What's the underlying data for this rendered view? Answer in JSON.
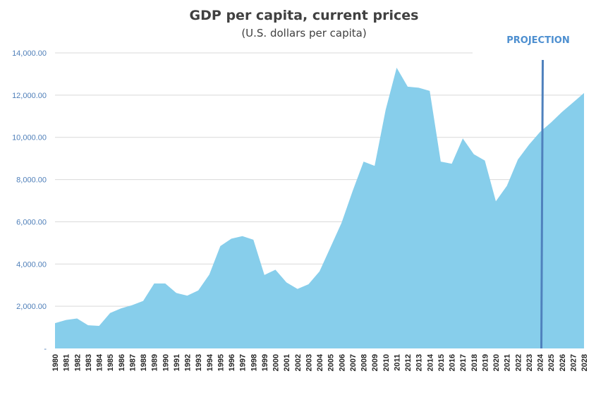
{
  "chart_data": {
    "type": "area",
    "title": "GDP per capita, current prices",
    "subtitle": "(U.S. dollars per capita)",
    "annotation": "PROJECTION",
    "projection_start": 2024,
    "ylim": [
      0,
      14000
    ],
    "yticks": [
      0,
      2000,
      4000,
      6000,
      8000,
      10000,
      12000,
      14000
    ],
    "ytick_labels": [
      "-",
      "2,000.00",
      "4,000.00",
      "6,000.00",
      "8,000.00",
      "10,000.00",
      "12,000.00",
      "14,000.00"
    ],
    "grid": true,
    "colors": {
      "area": "#87ceeb",
      "projection_line": "#4f81bd",
      "tick_text": "#4f7fb9"
    },
    "x": [
      1980,
      1981,
      1982,
      1983,
      1984,
      1985,
      1986,
      1987,
      1988,
      1989,
      1990,
      1991,
      1992,
      1993,
      1994,
      1995,
      1996,
      1997,
      1998,
      1999,
      2000,
      2001,
      2002,
      2003,
      2004,
      2005,
      2006,
      2007,
      2008,
      2009,
      2010,
      2011,
      2012,
      2013,
      2014,
      2015,
      2016,
      2017,
      2018,
      2019,
      2020,
      2021,
      2022,
      2023,
      2024,
      2025,
      2026,
      2027,
      2028
    ],
    "x_labels": [
      "1980",
      "1981",
      "1982",
      "1983",
      "1984",
      "1985",
      "1986",
      "1987",
      "1988",
      "1989",
      "1990",
      "1991",
      "1992",
      "1993",
      "1994",
      "1995",
      "1996",
      "1997",
      "1998",
      "1999",
      "2000",
      "2001",
      "2002",
      "2003",
      "2004",
      "2005",
      "2006",
      "2007",
      "2008",
      "2009",
      "2010",
      "2011",
      "2012",
      "2013",
      "2014",
      "2015",
      "2016",
      "2017",
      "2018",
      "2019",
      "2020",
      "2021",
      "2022",
      "2023",
      "2024",
      "2025",
      "2026",
      "2027",
      "2028"
    ],
    "series": [
      {
        "values": [
          1200,
          1350,
          1420,
          1100,
          1070,
          1680,
          1900,
          2050,
          2250,
          3080,
          3080,
          2630,
          2500,
          2750,
          3500,
          4850,
          5200,
          5320,
          5150,
          3480,
          3730,
          3130,
          2820,
          3040,
          3650,
          4800,
          5950,
          7450,
          8850,
          8650,
          11300,
          13300,
          12400,
          12350,
          12200,
          8850,
          8750,
          9950,
          9200,
          8900,
          6970,
          7700,
          8950,
          9650,
          10250,
          10700,
          11200,
          11650,
          12100
        ]
      }
    ]
  }
}
